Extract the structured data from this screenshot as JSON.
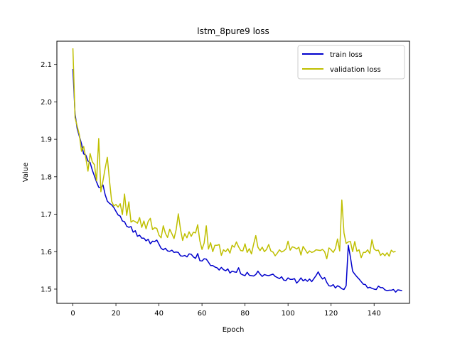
{
  "chart_data": {
    "type": "line",
    "title": "lstm_8pure9 loss",
    "xlabel": "Epoch",
    "ylabel": "Value",
    "xlim": [
      -7.45,
      156.45
    ],
    "ylim": [
      1.462,
      2.162
    ],
    "xticks": [
      0,
      20,
      40,
      60,
      80,
      100,
      120,
      140
    ],
    "yticks": [
      1.5,
      1.6,
      1.7,
      1.8,
      1.9,
      2.0,
      2.1
    ],
    "ytick_labels": [
      "1.5",
      "1.6",
      "1.7",
      "1.8",
      "1.9",
      "2.0",
      "2.1"
    ],
    "grid": false,
    "legend_position": "top-right",
    "series": [
      {
        "name": "train loss",
        "color": "#0000cc",
        "values": [
          2.088,
          1.968,
          1.928,
          1.908,
          1.888,
          1.861,
          1.858,
          1.842,
          1.838,
          1.818,
          1.802,
          1.786,
          1.772,
          1.771,
          1.778,
          1.752,
          1.735,
          1.729,
          1.725,
          1.718,
          1.708,
          1.698,
          1.695,
          1.682,
          1.68,
          1.668,
          1.665,
          1.667,
          1.652,
          1.656,
          1.641,
          1.644,
          1.636,
          1.636,
          1.629,
          1.633,
          1.621,
          1.628,
          1.627,
          1.631,
          1.62,
          1.609,
          1.605,
          1.609,
          1.602,
          1.601,
          1.604,
          1.598,
          1.599,
          1.598,
          1.589,
          1.588,
          1.59,
          1.586,
          1.594,
          1.593,
          1.586,
          1.582,
          1.595,
          1.576,
          1.575,
          1.581,
          1.58,
          1.572,
          1.563,
          1.563,
          1.559,
          1.557,
          1.551,
          1.558,
          1.552,
          1.549,
          1.554,
          1.543,
          1.548,
          1.546,
          1.545,
          1.557,
          1.541,
          1.538,
          1.536,
          1.545,
          1.537,
          1.536,
          1.535,
          1.539,
          1.548,
          1.54,
          1.534,
          1.539,
          1.537,
          1.536,
          1.538,
          1.54,
          1.534,
          1.531,
          1.528,
          1.533,
          1.524,
          1.523,
          1.53,
          1.526,
          1.526,
          1.528,
          1.516,
          1.522,
          1.53,
          1.522,
          1.526,
          1.521,
          1.527,
          1.52,
          1.528,
          1.536,
          1.546,
          1.535,
          1.527,
          1.531,
          1.518,
          1.509,
          1.508,
          1.512,
          1.503,
          1.509,
          1.506,
          1.501,
          1.499,
          1.509,
          1.617,
          1.585,
          1.548,
          1.54,
          1.533,
          1.527,
          1.52,
          1.513,
          1.512,
          1.503,
          1.505,
          1.502,
          1.5,
          1.499,
          1.508,
          1.504,
          1.504,
          1.498,
          1.496,
          1.497,
          1.497,
          1.499,
          1.492,
          1.498,
          1.497,
          1.496
        ]
      },
      {
        "name": "validation loss",
        "color": "#bfbf00",
        "values": [
          2.143,
          1.958,
          1.935,
          1.912,
          1.868,
          1.881,
          1.85,
          1.815,
          1.862,
          1.84,
          1.832,
          1.789,
          1.902,
          1.76,
          1.79,
          1.823,
          1.852,
          1.79,
          1.735,
          1.722,
          1.726,
          1.719,
          1.728,
          1.699,
          1.754,
          1.697,
          1.733,
          1.679,
          1.683,
          1.68,
          1.676,
          1.691,
          1.665,
          1.682,
          1.661,
          1.681,
          1.689,
          1.659,
          1.664,
          1.662,
          1.644,
          1.637,
          1.669,
          1.649,
          1.638,
          1.66,
          1.648,
          1.635,
          1.659,
          1.701,
          1.66,
          1.63,
          1.648,
          1.637,
          1.653,
          1.641,
          1.652,
          1.65,
          1.672,
          1.629,
          1.606,
          1.623,
          1.669,
          1.607,
          1.624,
          1.6,
          1.617,
          1.617,
          1.619,
          1.59,
          1.605,
          1.6,
          1.608,
          1.596,
          1.617,
          1.612,
          1.626,
          1.613,
          1.603,
          1.602,
          1.621,
          1.598,
          1.608,
          1.594,
          1.62,
          1.643,
          1.612,
          1.603,
          1.612,
          1.6,
          1.606,
          1.619,
          1.602,
          1.599,
          1.589,
          1.596,
          1.605,
          1.599,
          1.602,
          1.607,
          1.628,
          1.604,
          1.613,
          1.611,
          1.607,
          1.612,
          1.591,
          1.614,
          1.605,
          1.596,
          1.602,
          1.598,
          1.6,
          1.605,
          1.604,
          1.603,
          1.606,
          1.6,
          1.581,
          1.61,
          1.605,
          1.598,
          1.608,
          1.634,
          1.602,
          1.738,
          1.65,
          1.622,
          1.626,
          1.627,
          1.6,
          1.627,
          1.601,
          1.605,
          1.584,
          1.598,
          1.598,
          1.605,
          1.595,
          1.632,
          1.607,
          1.603,
          1.604,
          1.59,
          1.596,
          1.589,
          1.597,
          1.588,
          1.604,
          1.599,
          1.601
        ]
      }
    ]
  }
}
